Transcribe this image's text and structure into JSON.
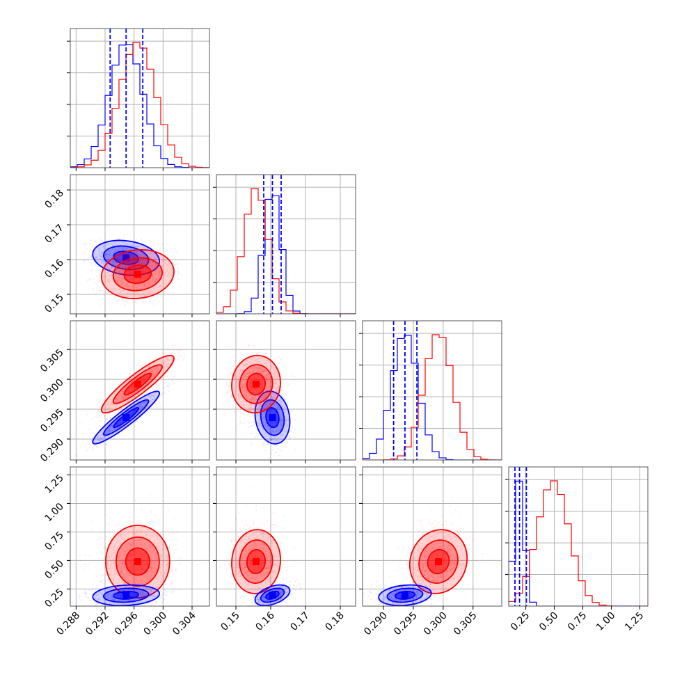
{
  "chart_data": {
    "type": "corner",
    "parameters": [
      {
        "range": [
          0.2872,
          0.3064
        ],
        "ticks": [
          0.288,
          0.292,
          0.296,
          0.3,
          0.304
        ],
        "tick_labels": [
          "0.288",
          "0.292",
          "0.296",
          "0.300",
          "0.304"
        ]
      },
      {
        "range": [
          0.1444,
          0.1844
        ],
        "ticks": [
          0.15,
          0.16,
          0.17,
          0.18
        ],
        "tick_labels": [
          "0.15",
          "0.16",
          "0.17",
          "0.18"
        ]
      },
      {
        "range": [
          0.2865,
          0.3098
        ],
        "ticks": [
          0.29,
          0.295,
          0.3,
          0.305
        ],
        "tick_labels": [
          "0.290",
          "0.295",
          "0.300",
          "0.305"
        ]
      },
      {
        "range": [
          0.1,
          1.32
        ],
        "ticks": [
          0.25,
          0.5,
          0.75,
          1.0,
          1.25
        ],
        "tick_labels": [
          "0.25",
          "0.50",
          "0.75",
          "1.00",
          "1.25"
        ]
      }
    ],
    "series": [
      {
        "color": "#0000ff",
        "means": [
          0.2949,
          0.1605,
          0.2936,
          0.195
        ],
        "sigmas": [
          0.0023,
          0.0025,
          0.0022,
          0.045
        ],
        "correlations": [
          [
            0,
            1,
            -0.2
          ],
          [
            0,
            2,
            0.93
          ],
          [
            0,
            3,
            0.15
          ],
          [
            1,
            2,
            -0.15
          ],
          [
            1,
            3,
            0.45
          ],
          [
            2,
            3,
            0.2
          ]
        ],
        "quantile_lines": [
          [
            0.2927,
            0.2949,
            0.2972
          ],
          [
            0.158,
            0.1605,
            0.163
          ],
          [
            0.2917,
            0.2936,
            0.2956
          ],
          [
            0.155,
            0.195,
            0.255
          ]
        ]
      },
      {
        "color": "#ff0000",
        "means": [
          0.2965,
          0.1558,
          0.2992,
          0.49
        ],
        "sigmas": [
          0.0025,
          0.0035,
          0.0024,
          0.14
        ],
        "correlations": [
          [
            0,
            1,
            0.1
          ],
          [
            0,
            2,
            0.9
          ],
          [
            0,
            3,
            0.0
          ],
          [
            1,
            2,
            0.05
          ],
          [
            1,
            3,
            0.05
          ],
          [
            2,
            3,
            0.1
          ]
        ]
      }
    ],
    "grid": true,
    "title": "",
    "legend": "none"
  }
}
